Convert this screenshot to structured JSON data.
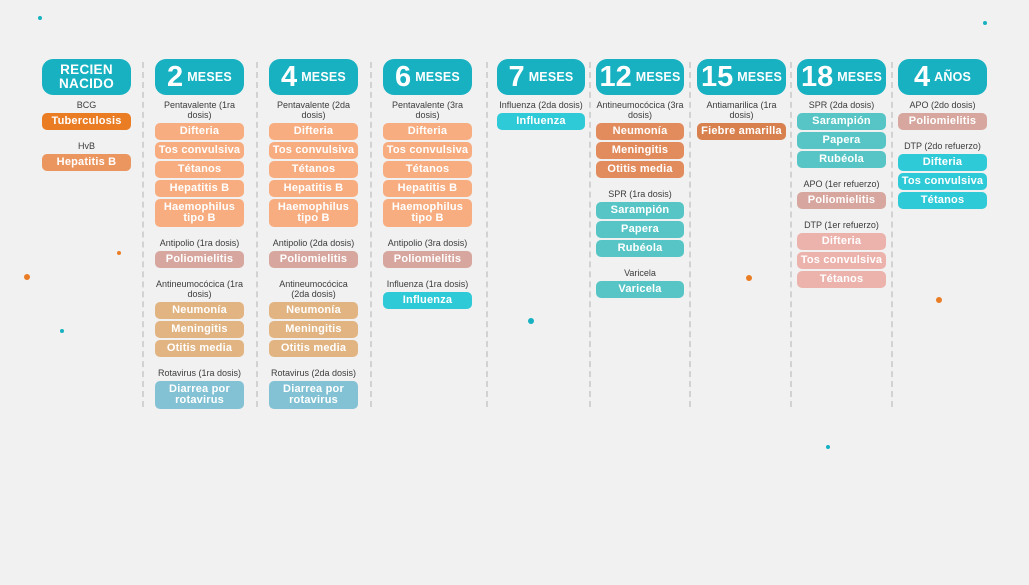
{
  "colors": {
    "header": "#17b1c1",
    "separator": "#d2d2d2",
    "pentavalente": "#f7ad80",
    "antipolio": "#d7a79f",
    "antineumococica": "#e1b482",
    "rotavirus": "#82c2d4",
    "influenza": "#2fcad8",
    "neumococica3": "#e28c5e",
    "spr": "#57c5c6",
    "antiamarilica": "#d8814f",
    "dtp": "#ecb3ad",
    "tuberculosis": "#ea7d24",
    "hepatitis_nb": "#eb965f"
  },
  "columns": [
    {
      "header": {
        "single": "RECIEN NACIDO"
      },
      "groups": [
        {
          "name": "BCG",
          "items": [
            {
              "label": "Tuberculosis",
              "color": "tuberculosis"
            }
          ]
        },
        {
          "name": "HvB",
          "items": [
            {
              "label": "Hepatitis B",
              "color": "hepatitis_nb"
            }
          ]
        }
      ]
    },
    {
      "header": {
        "num": "2",
        "unit": "MESES"
      },
      "groups": [
        {
          "name": "Pentavalente (1ra dosis)",
          "items": [
            {
              "label": "Difteria",
              "color": "pentavalente"
            },
            {
              "label": "Tos convulsiva",
              "color": "pentavalente"
            },
            {
              "label": "Tétanos",
              "color": "pentavalente"
            },
            {
              "label": "Hepatitis B",
              "color": "pentavalente"
            },
            {
              "label": "Haemophilus tipo B",
              "color": "pentavalente"
            }
          ]
        },
        {
          "name": "Antipolio (1ra dosis)",
          "items": [
            {
              "label": "Poliomielitis",
              "color": "antipolio"
            }
          ]
        },
        {
          "name": "Antineumocócica (1ra dosis)",
          "items": [
            {
              "label": "Neumonía",
              "color": "antineumococica"
            },
            {
              "label": "Meningitis",
              "color": "antineumococica"
            },
            {
              "label": "Otitis media",
              "color": "antineumococica"
            }
          ]
        },
        {
          "name": "Rotavirus (1ra dosis)",
          "items": [
            {
              "label": "Diarrea por rotavirus",
              "color": "rotavirus"
            }
          ]
        }
      ]
    },
    {
      "header": {
        "num": "4",
        "unit": "MESES"
      },
      "groups": [
        {
          "name": "Pentavalente (2da dosis)",
          "items": [
            {
              "label": "Difteria",
              "color": "pentavalente"
            },
            {
              "label": "Tos convulsiva",
              "color": "pentavalente"
            },
            {
              "label": "Tétanos",
              "color": "pentavalente"
            },
            {
              "label": "Hepatitis B",
              "color": "pentavalente"
            },
            {
              "label": "Haemophilus tipo B",
              "color": "pentavalente"
            }
          ]
        },
        {
          "name": "Antipolio (2da dosis)",
          "items": [
            {
              "label": "Poliomielitis",
              "color": "antipolio"
            }
          ]
        },
        {
          "name": "Antineumocócica (2da dosis)",
          "items": [
            {
              "label": "Neumonía",
              "color": "antineumococica"
            },
            {
              "label": "Meningitis",
              "color": "antineumococica"
            },
            {
              "label": "Otitis media",
              "color": "antineumococica"
            }
          ]
        },
        {
          "name": "Rotavirus (2da dosis)",
          "items": [
            {
              "label": "Diarrea por rotavirus",
              "color": "rotavirus"
            }
          ]
        }
      ]
    },
    {
      "header": {
        "num": "6",
        "unit": "MESES"
      },
      "groups": [
        {
          "name": "Pentavalente (3ra dosis)",
          "items": [
            {
              "label": "Difteria",
              "color": "pentavalente"
            },
            {
              "label": "Tos convulsiva",
              "color": "pentavalente"
            },
            {
              "label": "Tétanos",
              "color": "pentavalente"
            },
            {
              "label": "Hepatitis B",
              "color": "pentavalente"
            },
            {
              "label": "Haemophilus tipo B",
              "color": "pentavalente"
            }
          ]
        },
        {
          "name": "Antipolio (3ra dosis)",
          "items": [
            {
              "label": "Poliomielitis",
              "color": "antipolio"
            }
          ]
        },
        {
          "name": "Influenza (1ra dosis)",
          "items": [
            {
              "label": "Influenza",
              "color": "influenza"
            }
          ]
        }
      ]
    },
    {
      "header": {
        "num": "7",
        "unit": "MESES"
      },
      "groups": [
        {
          "name": "Influenza (2da dosis)",
          "items": [
            {
              "label": "Influenza",
              "color": "influenza"
            }
          ]
        }
      ]
    },
    {
      "header": {
        "num": "12",
        "unit": "MESES"
      },
      "groups": [
        {
          "name": "Antineumocócica (3ra dosis)",
          "items": [
            {
              "label": "Neumonía",
              "color": "neumococica3"
            },
            {
              "label": "Meningitis",
              "color": "neumococica3"
            },
            {
              "label": "Otitis media",
              "color": "neumococica3"
            }
          ]
        },
        {
          "name": "SPR (1ra dosis)",
          "items": [
            {
              "label": "Sarampión",
              "color": "spr"
            },
            {
              "label": "Papera",
              "color": "spr"
            },
            {
              "label": "Rubéola",
              "color": "spr"
            }
          ]
        },
        {
          "name": "Varicela",
          "items": [
            {
              "label": "Varicela",
              "color": "spr"
            }
          ]
        }
      ]
    },
    {
      "header": {
        "num": "15",
        "unit": "MESES"
      },
      "groups": [
        {
          "name": "Antiamarilica (1ra dosis)",
          "items": [
            {
              "label": "Fiebre amarilla",
              "color": "antiamarilica"
            }
          ]
        }
      ]
    },
    {
      "header": {
        "num": "18",
        "unit": "MESES"
      },
      "groups": [
        {
          "name": "SPR (2da dosis)",
          "items": [
            {
              "label": "Sarampión",
              "color": "spr"
            },
            {
              "label": "Papera",
              "color": "spr"
            },
            {
              "label": "Rubéola",
              "color": "spr"
            }
          ]
        },
        {
          "name": "APO (1er refuerzo)",
          "items": [
            {
              "label": "Poliomielitis",
              "color": "antipolio"
            }
          ]
        },
        {
          "name": "DTP (1er refuerzo)",
          "items": [
            {
              "label": "Difteria",
              "color": "dtp"
            },
            {
              "label": "Tos convulsiva",
              "color": "dtp"
            },
            {
              "label": "Tétanos",
              "color": "dtp"
            }
          ]
        }
      ]
    },
    {
      "header": {
        "num": "4",
        "unit": "AÑOS"
      },
      "groups": [
        {
          "name": "APO (2do dosis)",
          "items": [
            {
              "label": "Poliomielitis",
              "color": "antipolio"
            }
          ]
        },
        {
          "name": "DTP (2do refuerzo)",
          "items": [
            {
              "label": "Difteria",
              "color": "influenza"
            },
            {
              "label": "Tos convulsiva",
              "color": "influenza"
            },
            {
              "label": "Tétanos",
              "color": "influenza"
            }
          ]
        }
      ]
    }
  ]
}
